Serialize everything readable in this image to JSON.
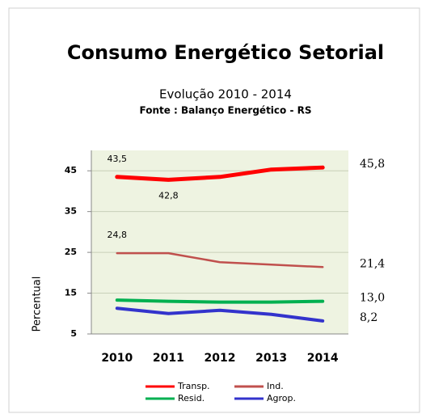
{
  "chart_data": {
    "type": "line",
    "title": "Consumo Energético Setorial",
    "subtitle": "Evolução  2010 - 2014",
    "source": "Fonte : Balanço Energético - RS",
    "y_label": "Percentual",
    "categories": [
      "2010",
      "2011",
      "2012",
      "2013",
      "2014"
    ],
    "ylim": [
      5,
      50
    ],
    "yticks": [
      5,
      15,
      25,
      35,
      45
    ],
    "grid": true,
    "legend": "bottom",
    "series": [
      {
        "name": "Transp.",
        "color": "#ff0000",
        "values": [
          43.5,
          42.8,
          43.5,
          45.3,
          45.8
        ],
        "value_labels": [
          "43,5",
          "42,8",
          null,
          null,
          "45,8"
        ]
      },
      {
        "name": "Ind.",
        "color": "#c0504d",
        "values": [
          24.8,
          24.8,
          22.6,
          22.0,
          21.4
        ],
        "value_labels": [
          "24,8",
          null,
          null,
          null,
          "21,4"
        ]
      },
      {
        "name": "Resid.",
        "color": "#00b050",
        "values": [
          13.3,
          13.0,
          12.8,
          12.8,
          13.0
        ],
        "value_labels": [
          null,
          null,
          null,
          null,
          "13,0"
        ]
      },
      {
        "name": "Agrop.",
        "color": "#3333cc",
        "values": [
          11.3,
          10.0,
          10.8,
          9.8,
          8.2
        ],
        "value_labels": [
          null,
          null,
          null,
          null,
          "8,2"
        ]
      }
    ]
  }
}
